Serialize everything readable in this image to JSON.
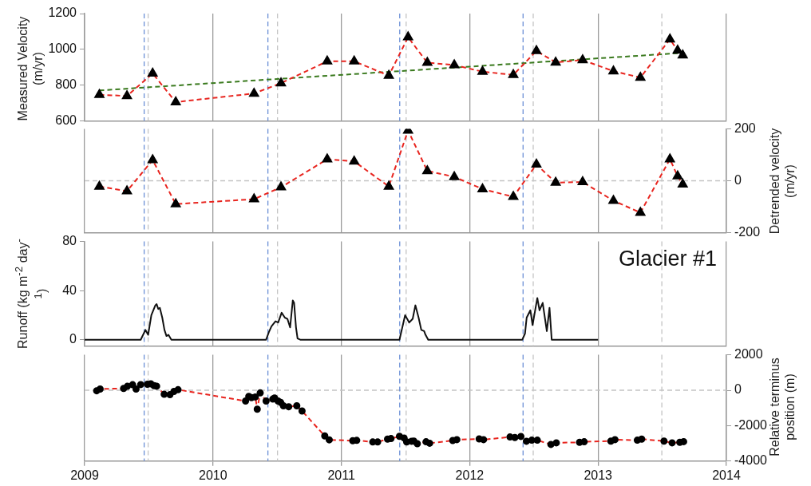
{
  "chart_data": [
    {
      "type": "line",
      "ylabel": "Measured Velocity (m/yr)",
      "xlim": [
        2009,
        2014
      ],
      "xticks": [
        2009,
        2010,
        2011,
        2012,
        2013,
        2014
      ],
      "ylim": [
        600,
        1200
      ],
      "yticks": [
        600,
        800,
        1000,
        1200
      ],
      "grid": "x",
      "legend": false,
      "tick_labels": "y",
      "marker": "triangle",
      "line_style": "dashed",
      "x": [
        2009.115,
        2009.33,
        2009.53,
        2009.71,
        2010.32,
        2010.53,
        2010.89,
        2011.1,
        2011.37,
        2011.52,
        2011.67,
        2011.88,
        2012.1,
        2012.34,
        2012.52,
        2012.67,
        2012.88,
        2013.12,
        2013.33,
        2013.56,
        2013.62,
        2013.66
      ],
      "series": [
        {
          "color": "#e8251f",
          "values": [
            746,
            739,
            865,
            705,
            753,
            811,
            933,
            933,
            853,
            1068,
            925,
            912,
            875,
            857,
            991,
            927,
            940,
            878,
            842,
            1056,
            994,
            967
          ]
        },
        {
          "color": "#3a7a1e",
          "x": [
            2009.115,
            2013.66
          ],
          "values": [
            770,
            980
          ],
          "marker": "none"
        }
      ],
      "ref_lines": [
        {
          "axis": "x",
          "value": 2009.464,
          "color": "#6b8fd6",
          "line_style": "dashed"
        },
        {
          "axis": "x",
          "value": 2010.428,
          "color": "#6b8fd6",
          "line_style": "dashed"
        },
        {
          "axis": "x",
          "value": 2011.455,
          "color": "#6b8fd6",
          "line_style": "dashed"
        },
        {
          "axis": "x",
          "value": 2012.416,
          "color": "#6b8fd6",
          "line_style": "dashed"
        },
        {
          "axis": "x",
          "value": 2009.495,
          "color": "#c4c4c4",
          "line_style": "dashed"
        },
        {
          "axis": "x",
          "value": 2010.503,
          "color": "#c4c4c4",
          "line_style": "dashed"
        },
        {
          "axis": "x",
          "value": 2011.505,
          "color": "#c4c4c4",
          "line_style": "dashed"
        },
        {
          "axis": "x",
          "value": 2012.495,
          "color": "#c4c4c4",
          "line_style": "dashed"
        },
        {
          "axis": "x",
          "value": 2013.497,
          "color": "#c4c4c4",
          "line_style": "dashed"
        }
      ]
    },
    {
      "type": "line",
      "y2label": "Detrended velocity (m/yr)",
      "xlim": [
        2009,
        2014
      ],
      "xticks": [
        2009,
        2010,
        2011,
        2012,
        2013,
        2014
      ],
      "y2lim": [
        -200,
        200
      ],
      "y2ticks": [
        -200,
        0,
        200
      ],
      "grid": "x",
      "legend": false,
      "tick_labels": "y",
      "marker": "triangle",
      "line_style": "dashed",
      "x": [
        2009.115,
        2009.33,
        2009.53,
        2009.71,
        2010.32,
        2010.53,
        2010.89,
        2011.1,
        2011.37,
        2011.52,
        2011.67,
        2011.88,
        2012.1,
        2012.34,
        2012.52,
        2012.67,
        2012.88,
        2013.12,
        2013.33,
        2013.56,
        2013.62,
        2013.66
      ],
      "series": [
        {
          "color": "#e8251f",
          "axis": "y2",
          "values": [
            -22,
            -40,
            80,
            -90,
            -71,
            -25,
            83,
            75,
            -22,
            194,
            38,
            15,
            -32,
            -62,
            63,
            -7,
            -5,
            -77,
            -123,
            83,
            18,
            -14
          ]
        }
      ],
      "ref_lines": [
        {
          "axis": "y2",
          "value": 0,
          "color": "#c4c4c4",
          "line_style": "dashed"
        },
        {
          "axis": "x",
          "value": 2009.464,
          "color": "#6b8fd6",
          "line_style": "dashed"
        },
        {
          "axis": "x",
          "value": 2010.428,
          "color": "#6b8fd6",
          "line_style": "dashed"
        },
        {
          "axis": "x",
          "value": 2011.455,
          "color": "#6b8fd6",
          "line_style": "dashed"
        },
        {
          "axis": "x",
          "value": 2012.416,
          "color": "#6b8fd6",
          "line_style": "dashed"
        },
        {
          "axis": "x",
          "value": 2009.495,
          "color": "#c4c4c4",
          "line_style": "dashed"
        },
        {
          "axis": "x",
          "value": 2010.503,
          "color": "#c4c4c4",
          "line_style": "dashed"
        },
        {
          "axis": "x",
          "value": 2011.505,
          "color": "#c4c4c4",
          "line_style": "dashed"
        },
        {
          "axis": "x",
          "value": 2012.495,
          "color": "#c4c4c4",
          "line_style": "dashed"
        },
        {
          "axis": "x",
          "value": 2013.497,
          "color": "#c4c4c4",
          "line_style": "dashed"
        }
      ]
    },
    {
      "type": "line",
      "ylabel": "Runoff (kg m$^{-2}$ day$^{-1}$)",
      "annotations": [
        "Glacier #1"
      ],
      "xlim": [
        2009,
        2014
      ],
      "xticks": [
        2009,
        2010,
        2011,
        2012,
        2013,
        2014
      ],
      "ylim": [
        -5,
        80
      ],
      "yticks": [
        0,
        40,
        80
      ],
      "grid": "x",
      "legend": false,
      "tick_labels": "y",
      "marker": "none",
      "line_style": "solid",
      "series": [
        {
          "color": "#111111",
          "x": [
            2009.0,
            2009.437,
            2009.474,
            2009.495,
            2009.52,
            2009.551,
            2009.561,
            2009.574,
            2009.586,
            2009.605,
            2009.622,
            2009.638,
            2009.653,
            2009.676,
            2010.414,
            2010.435,
            2010.456,
            2010.487,
            2010.508,
            2010.535,
            2010.56,
            2010.58,
            2010.601,
            2010.622,
            2010.632,
            2010.647,
            2010.659,
            2010.68,
            2011.453,
            2011.497,
            2011.529,
            2011.556,
            2011.577,
            2011.602,
            2011.623,
            2011.645,
            2011.656,
            2011.677,
            2012.41,
            2012.431,
            2012.444,
            2012.473,
            2012.49,
            2012.527,
            2012.544,
            2012.569,
            2012.601,
            2012.622,
            2012.639,
            2013.0
          ],
          "values": [
            0,
            0,
            8,
            4,
            20,
            28,
            29,
            25,
            26,
            18,
            8,
            3,
            4,
            0,
            0,
            6,
            11,
            15,
            14,
            22,
            18,
            17,
            10,
            32,
            30,
            10,
            1,
            0,
            0,
            20,
            14,
            17,
            28,
            18,
            8,
            7,
            4,
            0,
            0,
            5,
            18,
            24,
            12,
            34,
            24,
            30,
            7,
            26,
            0,
            0
          ]
        }
      ],
      "ref_lines": [
        {
          "axis": "x",
          "value": 2009.464,
          "color": "#6b8fd6",
          "line_style": "dashed"
        },
        {
          "axis": "x",
          "value": 2010.428,
          "color": "#6b8fd6",
          "line_style": "dashed"
        },
        {
          "axis": "x",
          "value": 2011.455,
          "color": "#6b8fd6",
          "line_style": "dashed"
        },
        {
          "axis": "x",
          "value": 2012.416,
          "color": "#6b8fd6",
          "line_style": "dashed"
        },
        {
          "axis": "x",
          "value": 2009.495,
          "color": "#c4c4c4",
          "line_style": "dashed"
        },
        {
          "axis": "x",
          "value": 2010.503,
          "color": "#c4c4c4",
          "line_style": "dashed"
        },
        {
          "axis": "x",
          "value": 2011.505,
          "color": "#c4c4c4",
          "line_style": "dashed"
        },
        {
          "axis": "x",
          "value": 2012.495,
          "color": "#c4c4c4",
          "line_style": "dashed"
        },
        {
          "axis": "x",
          "value": 2013.497,
          "color": "#c4c4c4",
          "line_style": "dashed"
        }
      ]
    },
    {
      "type": "line",
      "y2label": "Relative terminus position (m)",
      "xlim": [
        2009,
        2014
      ],
      "xticks": [
        2009,
        2010,
        2011,
        2012,
        2013,
        2014
      ],
      "y2lim": [
        -4000,
        2000
      ],
      "y2ticks": [
        -4000,
        -2000,
        0,
        2000
      ],
      "grid": "x",
      "legend": false,
      "marker": "circle",
      "line_style": "dashed",
      "x": [
        2009.094,
        2009.121,
        2009.304,
        2009.333,
        2009.374,
        2009.401,
        2009.437,
        2009.489,
        2009.516,
        2009.541,
        2009.561,
        2009.62,
        2009.665,
        2009.696,
        2009.728,
        2010.254,
        2010.279,
        2010.3,
        2010.33,
        2010.345,
        2010.368,
        2010.414,
        2010.466,
        2010.48,
        2010.507,
        2010.528,
        2010.549,
        2010.59,
        2010.653,
        2010.694,
        2010.871,
        2010.906,
        2011.089,
        2011.12,
        2011.245,
        2011.283,
        2011.36,
        2011.387,
        2011.453,
        2011.489,
        2011.509,
        2011.547,
        2011.565,
        2011.592,
        2011.66,
        2011.688,
        2011.868,
        2011.9,
        2012.074,
        2012.108,
        2012.314,
        2012.352,
        2012.399,
        2012.442,
        2012.484,
        2012.527,
        2012.633,
        2012.675,
        2012.856,
        2012.892,
        2013.1,
        2013.132,
        2013.306,
        2013.34,
        2013.514,
        2013.577,
        2013.637,
        2013.667
      ],
      "series": [
        {
          "color": "#e8251f",
          "axis": "y2",
          "values": [
            -30,
            70,
            100,
            220,
            310,
            70,
            320,
            340,
            360,
            260,
            230,
            -230,
            -250,
            -70,
            30,
            -610,
            -350,
            -420,
            -380,
            -1070,
            -150,
            -610,
            -500,
            -440,
            -610,
            -690,
            -880,
            -930,
            -880,
            -1170,
            -2580,
            -2800,
            -2850,
            -2830,
            -2920,
            -2920,
            -2760,
            -2730,
            -2600,
            -2700,
            -2920,
            -2880,
            -2870,
            -3020,
            -2910,
            -2990,
            -2840,
            -2790,
            -2750,
            -2790,
            -2640,
            -2670,
            -2610,
            -2880,
            -2820,
            -2820,
            -3060,
            -2970,
            -2940,
            -2910,
            -2870,
            -2790,
            -2820,
            -2760,
            -2870,
            -2970,
            -2940,
            -2900
          ]
        }
      ],
      "ref_lines": [
        {
          "axis": "y2",
          "value": 0,
          "color": "#c4c4c4",
          "line_style": "dashed"
        },
        {
          "axis": "x",
          "value": 2009.464,
          "color": "#6b8fd6",
          "line_style": "dashed"
        },
        {
          "axis": "x",
          "value": 2010.428,
          "color": "#6b8fd6",
          "line_style": "dashed"
        },
        {
          "axis": "x",
          "value": 2011.455,
          "color": "#6b8fd6",
          "line_style": "dashed"
        },
        {
          "axis": "x",
          "value": 2012.416,
          "color": "#6b8fd6",
          "line_style": "dashed"
        },
        {
          "axis": "x",
          "value": 2009.495,
          "color": "#c4c4c4",
          "line_style": "dashed"
        },
        {
          "axis": "x",
          "value": 2010.503,
          "color": "#c4c4c4",
          "line_style": "dashed"
        },
        {
          "axis": "x",
          "value": 2011.505,
          "color": "#c4c4c4",
          "line_style": "dashed"
        },
        {
          "axis": "x",
          "value": 2012.495,
          "color": "#c4c4c4",
          "line_style": "dashed"
        },
        {
          "axis": "x",
          "value": 2013.497,
          "color": "#c4c4c4",
          "line_style": "dashed"
        }
      ]
    }
  ]
}
